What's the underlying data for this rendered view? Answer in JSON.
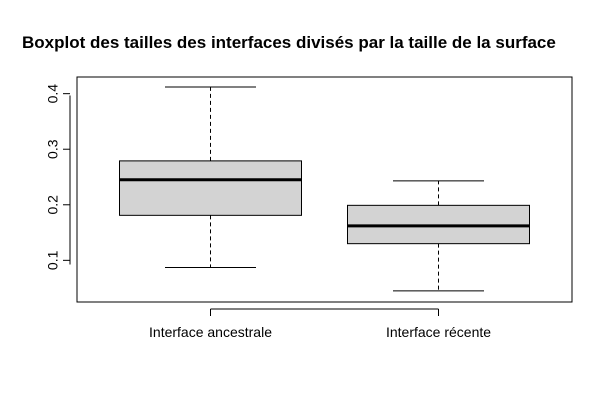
{
  "chart_data": {
    "type": "boxplot",
    "title": "Boxplot des tailles des interfaces divisés par la taille de la surface",
    "xlabel": "",
    "ylabel": "",
    "ylim": [
      0.025,
      0.43
    ],
    "yticks": [
      0.1,
      0.2,
      0.3,
      0.4
    ],
    "ytick_labels": [
      "0.1",
      "0.2",
      "0.3",
      "0.4"
    ],
    "grid": false,
    "categories": [
      "Interface  ancestrale",
      "Interface récente"
    ],
    "boxes": [
      {
        "category": "Interface  ancestrale",
        "whisker_low": 0.087,
        "q1": 0.181,
        "median": 0.245,
        "q3": 0.279,
        "whisker_high": 0.412
      },
      {
        "category": "Interface récente",
        "whisker_low": 0.045,
        "q1": 0.13,
        "median": 0.162,
        "q3": 0.199,
        "whisker_high": 0.243
      }
    ],
    "colors": {
      "box_fill": "#d3d3d3",
      "stroke": "#000000",
      "background": "#ffffff"
    }
  }
}
